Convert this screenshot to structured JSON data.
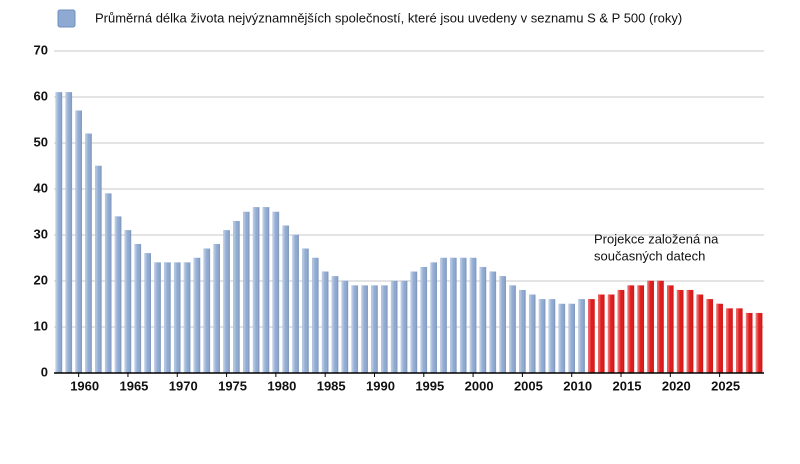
{
  "chart_data": {
    "type": "bar",
    "legend_position": "top-left",
    "annotation": [
      "Projekce založená na",
      "současných datech"
    ],
    "x": [
      1958,
      1959,
      1960,
      1961,
      1962,
      1963,
      1964,
      1965,
      1966,
      1967,
      1968,
      1969,
      1970,
      1971,
      1972,
      1973,
      1974,
      1975,
      1976,
      1977,
      1978,
      1979,
      1980,
      1981,
      1982,
      1983,
      1984,
      1985,
      1986,
      1987,
      1988,
      1989,
      1990,
      1991,
      1992,
      1993,
      1994,
      1995,
      1996,
      1997,
      1998,
      1999,
      2000,
      2001,
      2002,
      2003,
      2004,
      2005,
      2006,
      2007,
      2008,
      2009,
      2010,
      2011,
      2012,
      2013,
      2014,
      2015,
      2016,
      2017,
      2018,
      2019,
      2020,
      2021,
      2022,
      2023,
      2024,
      2025,
      2026,
      2027,
      2028,
      2029
    ],
    "series": [
      {
        "name": "Průměrná délka života nejvýznamnějších společností, které jsou uvedeny v seznamu S & P 500 (roky)",
        "color": "#8faad2",
        "values": [
          61,
          61,
          57,
          52,
          45,
          39,
          34,
          31,
          28,
          26,
          24,
          24,
          24,
          24,
          25,
          27,
          28,
          31,
          33,
          35,
          36,
          36,
          35,
          32,
          30,
          27,
          25,
          22,
          21,
          20,
          19,
          19,
          19,
          19,
          20,
          20,
          22,
          23,
          24,
          25,
          25,
          25,
          25,
          23,
          22,
          21,
          19,
          18,
          17,
          16,
          16,
          15,
          15,
          16,
          null,
          null,
          null,
          null,
          null,
          null,
          null,
          null,
          null,
          null,
          null,
          null,
          null,
          null,
          null,
          null,
          null,
          null
        ]
      },
      {
        "color": "#e01818",
        "values": [
          null,
          null,
          null,
          null,
          null,
          null,
          null,
          null,
          null,
          null,
          null,
          null,
          null,
          null,
          null,
          null,
          null,
          null,
          null,
          null,
          null,
          null,
          null,
          null,
          null,
          null,
          null,
          null,
          null,
          null,
          null,
          null,
          null,
          null,
          null,
          null,
          null,
          null,
          null,
          null,
          null,
          null,
          null,
          null,
          null,
          null,
          null,
          null,
          null,
          null,
          null,
          null,
          null,
          null,
          16,
          17,
          17,
          18,
          19,
          19,
          20,
          20,
          19,
          18,
          18,
          17,
          16,
          15,
          14,
          14,
          13,
          13
        ]
      }
    ],
    "xlim": [
      1957.5,
      2029.5
    ],
    "xticks": [
      1960,
      1965,
      1970,
      1975,
      1980,
      1985,
      1990,
      1995,
      2000,
      2005,
      2010,
      2015,
      2020,
      2025
    ],
    "ylim": [
      0,
      70
    ],
    "yticks": [
      0,
      10,
      20,
      30,
      40,
      50,
      60,
      70
    ],
    "grid": true
  }
}
